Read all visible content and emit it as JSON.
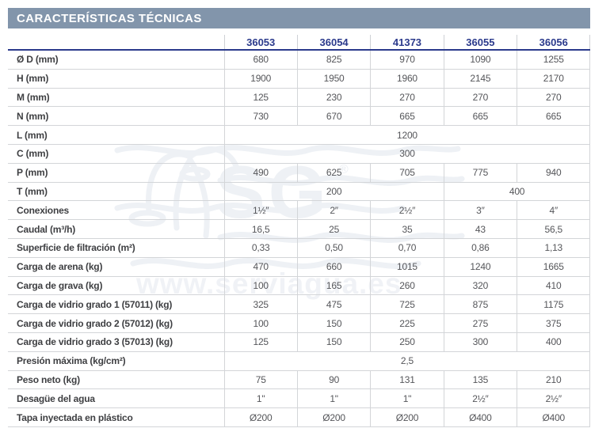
{
  "title": "CARACTERÍSTICAS TÉCNICAS",
  "colors": {
    "title_bar_bg": "#8295ab",
    "title_text": "#ffffff",
    "header_navy": "#2b3a8c",
    "label_text": "#3e3f42",
    "value_text": "#55565a",
    "grid_line": "#d3d5d8"
  },
  "watermark": {
    "logo_text": "SG",
    "registered_mark": "®",
    "url_text": "www.serviagua.es"
  },
  "table": {
    "columns": [
      "36053",
      "36054",
      "41373",
      "36055",
      "36056"
    ],
    "rows": [
      {
        "label": "Ø D (mm)",
        "cells": [
          {
            "text": "680",
            "span": 1
          },
          {
            "text": "825",
            "span": 1
          },
          {
            "text": "970",
            "span": 1
          },
          {
            "text": "1090",
            "span": 1
          },
          {
            "text": "1255",
            "span": 1
          }
        ]
      },
      {
        "label": "H (mm)",
        "cells": [
          {
            "text": "1900",
            "span": 1
          },
          {
            "text": "1950",
            "span": 1
          },
          {
            "text": "1960",
            "span": 1
          },
          {
            "text": "2145",
            "span": 1
          },
          {
            "text": "2170",
            "span": 1
          }
        ]
      },
      {
        "label": "M (mm)",
        "cells": [
          {
            "text": "125",
            "span": 1
          },
          {
            "text": "230",
            "span": 1
          },
          {
            "text": "270",
            "span": 1
          },
          {
            "text": "270",
            "span": 1
          },
          {
            "text": "270",
            "span": 1
          }
        ]
      },
      {
        "label": "N (mm)",
        "cells": [
          {
            "text": "730",
            "span": 1
          },
          {
            "text": "670",
            "span": 1
          },
          {
            "text": "665",
            "span": 1
          },
          {
            "text": "665",
            "span": 1
          },
          {
            "text": "665",
            "span": 1
          }
        ]
      },
      {
        "label": "L (mm)",
        "cells": [
          {
            "text": "1200",
            "span": 5
          }
        ]
      },
      {
        "label": "C (mm)",
        "cells": [
          {
            "text": "300",
            "span": 5
          }
        ]
      },
      {
        "label": "P (mm)",
        "cells": [
          {
            "text": "490",
            "span": 1
          },
          {
            "text": "625",
            "span": 1
          },
          {
            "text": "705",
            "span": 1
          },
          {
            "text": "775",
            "span": 1
          },
          {
            "text": "940",
            "span": 1
          }
        ]
      },
      {
        "label": "T (mm)",
        "cells": [
          {
            "text": "200",
            "span": 3
          },
          {
            "text": "400",
            "span": 2
          }
        ]
      },
      {
        "label": "Conexiones",
        "cells": [
          {
            "text": "1½″",
            "span": 1
          },
          {
            "text": "2″",
            "span": 1
          },
          {
            "text": "2½″",
            "span": 1
          },
          {
            "text": "3″",
            "span": 1
          },
          {
            "text": "4″",
            "span": 1
          }
        ]
      },
      {
        "label": "Caudal (m³/h)",
        "cells": [
          {
            "text": "16,5",
            "span": 1
          },
          {
            "text": "25",
            "span": 1
          },
          {
            "text": "35",
            "span": 1
          },
          {
            "text": "43",
            "span": 1
          },
          {
            "text": "56,5",
            "span": 1
          }
        ]
      },
      {
        "label": "Superficie de filtración (m²)",
        "cells": [
          {
            "text": "0,33",
            "span": 1
          },
          {
            "text": "0,50",
            "span": 1
          },
          {
            "text": "0,70",
            "span": 1
          },
          {
            "text": "0,86",
            "span": 1
          },
          {
            "text": "1,13",
            "span": 1
          }
        ]
      },
      {
        "label": "Carga de arena (kg)",
        "cells": [
          {
            "text": "470",
            "span": 1
          },
          {
            "text": "660",
            "span": 1
          },
          {
            "text": "1015",
            "span": 1
          },
          {
            "text": "1240",
            "span": 1
          },
          {
            "text": "1665",
            "span": 1
          }
        ]
      },
      {
        "label": "Carga de grava (kg)",
        "cells": [
          {
            "text": "100",
            "span": 1
          },
          {
            "text": "165",
            "span": 1
          },
          {
            "text": "260",
            "span": 1
          },
          {
            "text": "320",
            "span": 1
          },
          {
            "text": "410",
            "span": 1
          }
        ]
      },
      {
        "label": "Carga de vidrio grado 1 (57011) (kg)",
        "cells": [
          {
            "text": "325",
            "span": 1
          },
          {
            "text": "475",
            "span": 1
          },
          {
            "text": "725",
            "span": 1
          },
          {
            "text": "875",
            "span": 1
          },
          {
            "text": "1175",
            "span": 1
          }
        ]
      },
      {
        "label": "Carga de vidrio grado 2 (57012) (kg)",
        "cells": [
          {
            "text": "100",
            "span": 1
          },
          {
            "text": "150",
            "span": 1
          },
          {
            "text": "225",
            "span": 1
          },
          {
            "text": "275",
            "span": 1
          },
          {
            "text": "375",
            "span": 1
          }
        ]
      },
      {
        "label": "Carga de vidrio grado 3 (57013) (kg)",
        "cells": [
          {
            "text": "125",
            "span": 1
          },
          {
            "text": "150",
            "span": 1
          },
          {
            "text": "250",
            "span": 1
          },
          {
            "text": "300",
            "span": 1
          },
          {
            "text": "400",
            "span": 1
          }
        ]
      },
      {
        "label": "Presión máxima (kg/cm²)",
        "cells": [
          {
            "text": "2,5",
            "span": 5
          }
        ]
      },
      {
        "label": "Peso neto (kg)",
        "cells": [
          {
            "text": "75",
            "span": 1
          },
          {
            "text": "90",
            "span": 1
          },
          {
            "text": "131",
            "span": 1
          },
          {
            "text": "135",
            "span": 1
          },
          {
            "text": "210",
            "span": 1
          }
        ]
      },
      {
        "label": "Desagüe del agua",
        "cells": [
          {
            "text": "1\"",
            "span": 1
          },
          {
            "text": "1\"",
            "span": 1
          },
          {
            "text": "1\"",
            "span": 1
          },
          {
            "text": "2½″",
            "span": 1
          },
          {
            "text": "2½″",
            "span": 1
          }
        ]
      },
      {
        "label": "Tapa inyectada en plástico",
        "cells": [
          {
            "text": "Ø200",
            "span": 1
          },
          {
            "text": "Ø200",
            "span": 1
          },
          {
            "text": "Ø200",
            "span": 1
          },
          {
            "text": "Ø400",
            "span": 1
          },
          {
            "text": "Ø400",
            "span": 1
          }
        ]
      }
    ]
  }
}
